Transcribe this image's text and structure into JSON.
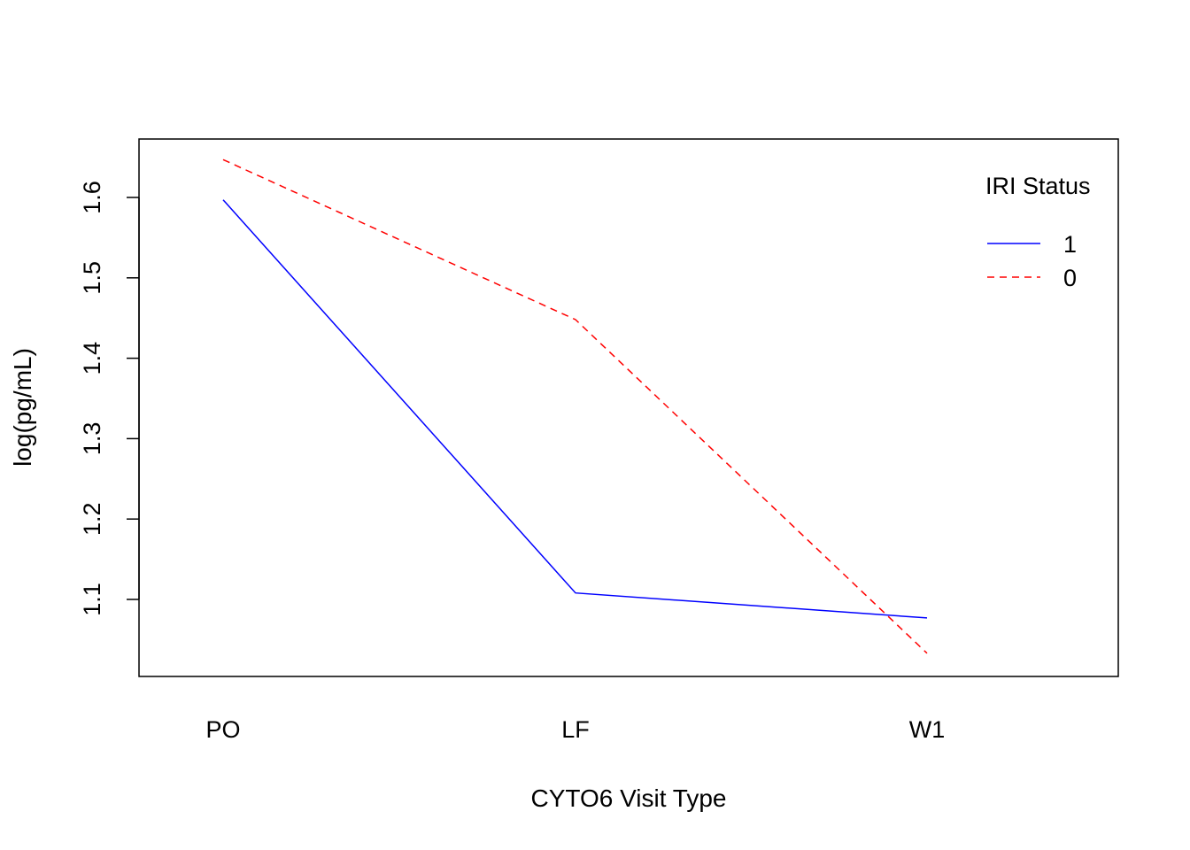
{
  "chart_data": {
    "type": "line",
    "title": "",
    "xlabel": "CYTO6 Visit Type",
    "ylabel": "log(pg/mL)",
    "categories": [
      "PO",
      "LF",
      "W1"
    ],
    "yticks": [
      "1.1",
      "1.2",
      "1.3",
      "1.4",
      "1.5",
      "1.6"
    ],
    "ylim": [
      1.0,
      1.67
    ],
    "grid": false,
    "legend": {
      "title": "IRI Status",
      "position": "top-right"
    },
    "series": [
      {
        "name": "1",
        "values": [
          1.597,
          1.108,
          1.077
        ],
        "color": "#0000ff",
        "dash": "solid"
      },
      {
        "name": "0",
        "values": [
          1.647,
          1.448,
          1.033
        ],
        "color": "#ff0000",
        "dash": "dashed"
      }
    ]
  }
}
